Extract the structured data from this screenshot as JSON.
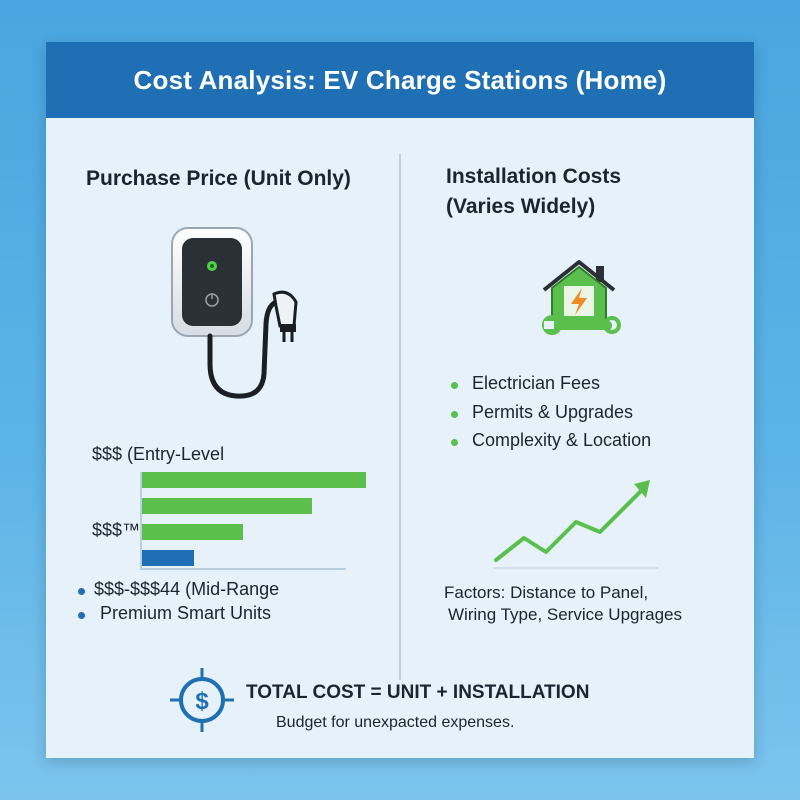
{
  "header": {
    "title": "Cost Analysis: EV Charge Stations (Home)"
  },
  "left": {
    "heading": "Purchase Price (Unit Only)",
    "price_label_1": "$$$  (Entry-Level",
    "price_label_2": "$$$™",
    "bars": [
      {
        "level": 0.95,
        "color": "green"
      },
      {
        "level": 0.72,
        "color": "green"
      },
      {
        "level": 0.43,
        "color": "green"
      },
      {
        "level": 0.22,
        "color": "blue"
      }
    ],
    "bullets": [
      {
        "label": "$$$-$$$44 (Mid-Range"
      },
      {
        "label": "Premium Smart Units"
      }
    ]
  },
  "right": {
    "heading_line1": "Installation Costs",
    "heading_line2": "(Varies Widely)",
    "bullets": [
      {
        "label": "Electrician Fees"
      },
      {
        "label": "Permits & Upgrades"
      },
      {
        "label": " Complexity & Location"
      }
    ],
    "factors_line1": "Factors: Distance to Panel,",
    "factors_line2": "Wiring Type, Service Upgrages"
  },
  "footer": {
    "total": "TOTAL COST = UNIT + INSTALLATION",
    "note": "Budget for unexpacted expenses.",
    "dollar_symbol": "$"
  },
  "colors": {
    "brand_blue": "#1f6fb4",
    "accent_green": "#5bbf4e",
    "accent_orange": "#f08a24"
  },
  "icons": [
    "ev-charger-icon",
    "house-bolt-icon",
    "wrench-icon",
    "trend-up-icon",
    "dollar-target-icon"
  ]
}
